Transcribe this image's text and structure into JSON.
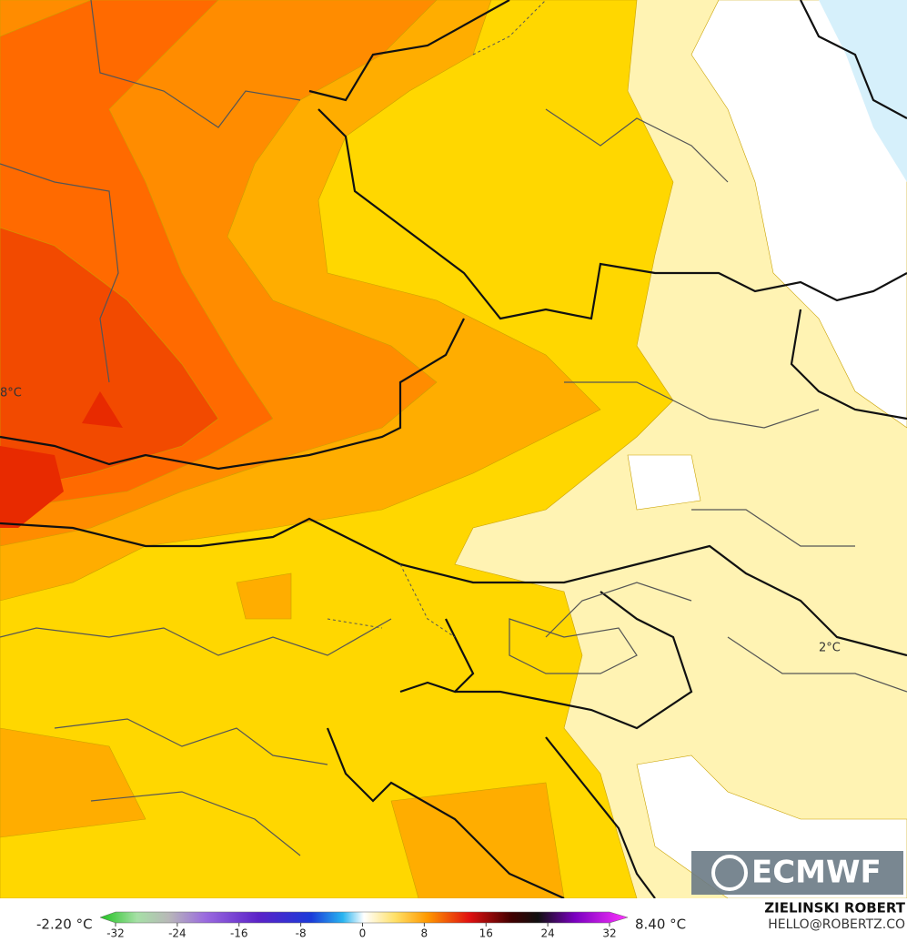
{
  "labels": [
    "8°C",
    "2°C"
  ],
  "logo": "ECMWF",
  "colorbar": {
    "min_label": "-2.20 °C",
    "max_label": "8.40 °C",
    "ticks": [
      -32,
      -24,
      -16,
      -8,
      0,
      8,
      16,
      24,
      32
    ]
  },
  "credits": [
    "ZIELINSKI ROBERT",
    "HELLO@ROBERTZ.CO"
  ]
}
